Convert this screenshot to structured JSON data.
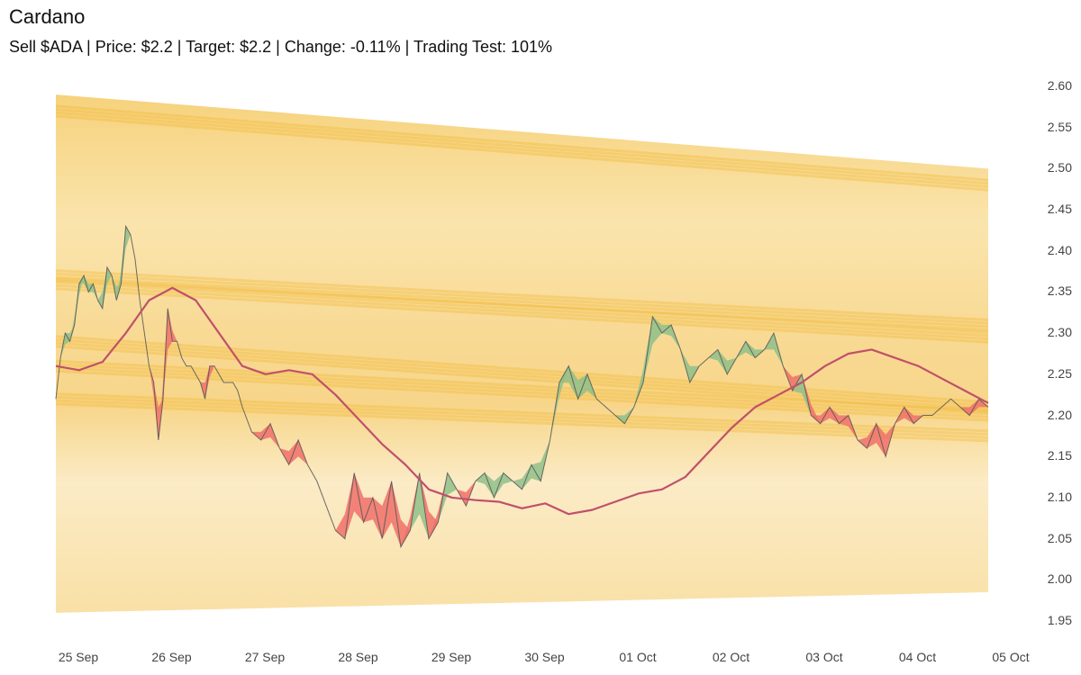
{
  "header": {
    "title": "Cardano",
    "subtitle": "Sell $ADA | Price: $2.2 | Target: $2.2 | Change: -0.11% | Trading Test: 101%"
  },
  "colors": {
    "band_light": "#fbeccb",
    "band_mid": "#f7d98f",
    "band_dark": "#f0b42c",
    "price_line": "#555555",
    "ma_line": "#c0506a",
    "fill_up": "#8fbf8a",
    "fill_down": "#f0706a"
  },
  "chart_data": {
    "type": "line",
    "title": "Cardano",
    "subtitle": "Sell $ADA | Price: $2.2 | Target: $2.2 | Change: -0.11% | Trading Test: 101%",
    "xlabel": "",
    "ylabel": "",
    "ylim": [
      1.95,
      2.6
    ],
    "y_ticks": [
      "2.60",
      "2.55",
      "2.50",
      "2.45",
      "2.40",
      "2.35",
      "2.30",
      "2.25",
      "2.20",
      "2.15",
      "2.10",
      "2.05",
      "2.00",
      "1.95"
    ],
    "x_ticks": [
      "25 Sep",
      "26 Sep",
      "27 Sep",
      "28 Sep",
      "29 Sep",
      "30 Sep",
      "01 Oct",
      "02 Oct",
      "03 Oct",
      "04 Oct",
      "05 Oct"
    ],
    "grid": false,
    "legend": "none",
    "band": {
      "upper_start": 2.59,
      "upper_end": 2.5,
      "lower_start": 1.96,
      "lower_end": 1.985,
      "dense_lines": [
        {
          "start": 2.57,
          "end": 2.48
        },
        {
          "start": 2.37,
          "end": 2.31
        },
        {
          "start": 2.36,
          "end": 2.295
        },
        {
          "start": 2.29,
          "end": 2.21
        },
        {
          "start": 2.26,
          "end": 2.2
        },
        {
          "start": 2.22,
          "end": 2.175
        }
      ]
    },
    "series": [
      {
        "name": "Price",
        "x": [
          0,
          0.05,
          0.1,
          0.15,
          0.2,
          0.25,
          0.3,
          0.35,
          0.4,
          0.45,
          0.5,
          0.55,
          0.6,
          0.65,
          0.7,
          0.75,
          0.8,
          0.85,
          0.9,
          0.95,
          1.0,
          1.05,
          1.1,
          1.15,
          1.2,
          1.25,
          1.3,
          1.35,
          1.4,
          1.45,
          1.5,
          1.55,
          1.6,
          1.65,
          1.7,
          1.75,
          1.8,
          1.85,
          1.9,
          1.95,
          2.0,
          2.1,
          2.2,
          2.3,
          2.4,
          2.5,
          2.6,
          2.7,
          2.8,
          2.9,
          3.0,
          3.1,
          3.2,
          3.3,
          3.4,
          3.5,
          3.6,
          3.7,
          3.8,
          3.9,
          4.0,
          4.1,
          4.2,
          4.3,
          4.4,
          4.5,
          4.6,
          4.7,
          4.8,
          4.9,
          5.0,
          5.1,
          5.2,
          5.3,
          5.4,
          5.5,
          5.6,
          5.7,
          5.8,
          5.9,
          6.0,
          6.1,
          6.2,
          6.3,
          6.4,
          6.5,
          6.6,
          6.7,
          6.8,
          6.9,
          7.0,
          7.1,
          7.2,
          7.3,
          7.4,
          7.5,
          7.6,
          7.7,
          7.8,
          7.9,
          8.0,
          8.1,
          8.2,
          8.3,
          8.4,
          8.5,
          8.6,
          8.7,
          8.8,
          8.9,
          9.0,
          9.1,
          9.2,
          9.3,
          9.4,
          9.5,
          9.6,
          9.7,
          9.8,
          9.9,
          10.0
        ],
        "values": [
          2.22,
          2.27,
          2.3,
          2.29,
          2.31,
          2.36,
          2.37,
          2.35,
          2.36,
          2.34,
          2.33,
          2.38,
          2.37,
          2.34,
          2.36,
          2.43,
          2.42,
          2.39,
          2.34,
          2.3,
          2.26,
          2.24,
          2.17,
          2.22,
          2.33,
          2.29,
          2.29,
          2.27,
          2.26,
          2.26,
          2.25,
          2.24,
          2.22,
          2.26,
          2.26,
          2.25,
          2.24,
          2.24,
          2.24,
          2.23,
          2.21,
          2.18,
          2.17,
          2.19,
          2.16,
          2.14,
          2.17,
          2.14,
          2.12,
          2.09,
          2.06,
          2.05,
          2.13,
          2.07,
          2.1,
          2.05,
          2.12,
          2.04,
          2.06,
          2.13,
          2.05,
          2.07,
          2.13,
          2.11,
          2.09,
          2.12,
          2.13,
          2.1,
          2.13,
          2.12,
          2.11,
          2.14,
          2.12,
          2.17,
          2.24,
          2.26,
          2.22,
          2.25,
          2.22,
          2.21,
          2.2,
          2.19,
          2.21,
          2.24,
          2.32,
          2.3,
          2.31,
          2.28,
          2.24,
          2.26,
          2.27,
          2.28,
          2.25,
          2.27,
          2.29,
          2.27,
          2.28,
          2.3,
          2.26,
          2.23,
          2.25,
          2.2,
          2.19,
          2.21,
          2.19,
          2.2,
          2.17,
          2.16,
          2.19,
          2.15,
          2.19,
          2.21,
          2.19,
          2.2,
          2.2,
          2.21,
          2.22,
          2.21,
          2.2,
          2.22,
          2.21
        ]
      },
      {
        "name": "Moving Average",
        "x": [
          0,
          0.25,
          0.5,
          0.75,
          1.0,
          1.25,
          1.5,
          1.75,
          2.0,
          2.25,
          2.5,
          2.75,
          3.0,
          3.25,
          3.5,
          3.75,
          4.0,
          4.25,
          4.5,
          4.75,
          5.0,
          5.25,
          5.5,
          5.75,
          6.0,
          6.25,
          6.5,
          6.75,
          7.0,
          7.25,
          7.5,
          7.75,
          8.0,
          8.25,
          8.5,
          8.75,
          9.0,
          9.25,
          9.5,
          9.75,
          10.0
        ],
        "values": [
          2.26,
          2.255,
          2.265,
          2.3,
          2.34,
          2.355,
          2.34,
          2.3,
          2.26,
          2.25,
          2.255,
          2.25,
          2.225,
          2.195,
          2.165,
          2.14,
          2.11,
          2.1,
          2.097,
          2.095,
          2.087,
          2.093,
          2.08,
          2.085,
          2.095,
          2.105,
          2.11,
          2.125,
          2.155,
          2.185,
          2.21,
          2.225,
          2.24,
          2.26,
          2.275,
          2.28,
          2.27,
          2.26,
          2.245,
          2.23,
          2.215
        ]
      }
    ]
  }
}
